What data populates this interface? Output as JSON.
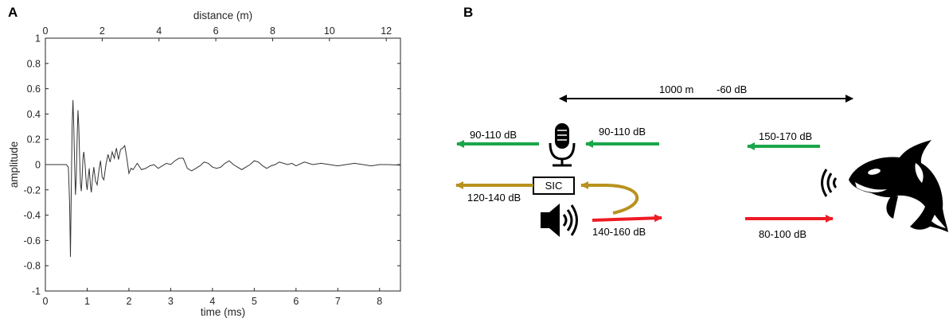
{
  "panels": {
    "a": "A",
    "b": "B"
  },
  "colors": {
    "green": "#1aa64a",
    "gold": "#b8921f",
    "red": "#ee1c24",
    "black": "#000000",
    "trace": "#333333"
  },
  "chart_data": [
    {
      "type": "line",
      "xlabel": "time (ms)",
      "ylabel": "amplitude",
      "secondary_xlabel": "distance (m)",
      "xlim": [
        0,
        8.5
      ],
      "ylim": [
        -1,
        1
      ],
      "secondary_xlim": [
        0,
        12.5
      ],
      "xticks": [
        "0",
        "1",
        "2",
        "3",
        "4",
        "5",
        "6",
        "7",
        "8"
      ],
      "yticks": [
        "-1",
        "-0.8",
        "-0.6",
        "-0.4",
        "-0.2",
        "0",
        "0.2",
        "0.4",
        "0.6",
        "0.8",
        "1"
      ],
      "secondary_xticks": [
        "0",
        "2",
        "4",
        "6",
        "8",
        "10",
        "12"
      ],
      "grid": false,
      "series": [
        {
          "x": [
            0,
            0.5,
            0.55,
            0.58,
            0.6,
            0.62,
            0.64,
            0.66,
            0.68,
            0.7,
            0.72,
            0.74,
            0.76,
            0.78,
            0.8,
            0.82,
            0.84,
            0.86,
            0.88,
            0.9,
            0.92,
            0.95,
            0.98,
            1.0,
            1.02,
            1.05,
            1.08,
            1.1,
            1.13,
            1.16,
            1.2,
            1.24,
            1.28,
            1.32,
            1.36,
            1.4,
            1.45,
            1.5,
            1.55,
            1.6,
            1.65,
            1.7,
            1.75,
            1.8,
            1.85,
            1.9,
            1.95,
            2.0,
            2.05,
            2.1,
            2.2,
            2.3,
            2.4,
            2.5,
            2.6,
            2.7,
            2.8,
            2.9,
            3.0,
            3.1,
            3.2,
            3.3,
            3.4,
            3.5,
            3.6,
            3.7,
            3.8,
            3.9,
            4.0,
            4.1,
            4.2,
            4.3,
            4.4,
            4.5,
            4.6,
            4.7,
            4.8,
            4.9,
            5.0,
            5.1,
            5.2,
            5.3,
            5.4,
            5.5,
            5.6,
            5.7,
            5.8,
            5.9,
            6.0,
            6.2,
            6.4,
            6.6,
            6.8,
            7.0,
            7.2,
            7.4,
            7.6,
            7.8,
            8.0,
            8.2,
            8.5
          ],
          "y": [
            0,
            0,
            -0.02,
            -0.3,
            -0.73,
            -0.2,
            0.3,
            0.51,
            0.3,
            0.0,
            -0.24,
            -0.1,
            0.2,
            0.43,
            0.3,
            0.05,
            -0.15,
            -0.21,
            -0.1,
            0.05,
            0.1,
            0.0,
            -0.15,
            -0.2,
            -0.12,
            -0.03,
            -0.17,
            -0.22,
            -0.1,
            -0.02,
            -0.13,
            -0.16,
            -0.05,
            0.03,
            -0.1,
            -0.12,
            0.0,
            0.08,
            0.02,
            0.1,
            0.05,
            0.13,
            0.04,
            0.12,
            0.13,
            0.15,
            0.05,
            -0.07,
            -0.03,
            -0.04,
            0.01,
            -0.04,
            -0.03,
            -0.01,
            0.0,
            -0.03,
            -0.01,
            0.01,
            0.0,
            0.03,
            0.05,
            0.05,
            -0.03,
            -0.05,
            -0.03,
            -0.01,
            0.02,
            0.01,
            -0.02,
            -0.03,
            -0.02,
            0.01,
            0.03,
            0.0,
            -0.02,
            -0.04,
            -0.02,
            0.0,
            0.03,
            0.02,
            -0.01,
            -0.03,
            -0.01,
            0.0,
            0.02,
            0.01,
            0.0,
            0.01,
            -0.01,
            0.02,
            0.0,
            0.01,
            0.0,
            -0.01,
            0.0,
            0.01,
            0.0,
            -0.01,
            0.0,
            0.0,
            -0.005
          ]
        }
      ]
    }
  ],
  "diagram": {
    "distance_label": "1000 m",
    "attenuation_label": "-60 dB",
    "sic_label": "SIC",
    "left_green_label": "90-110 dB",
    "mid_green_label": "90-110 dB",
    "right_green_label": "150-170 dB",
    "gold_label": "120-140 dB",
    "mid_red_label": "140-160 dB",
    "right_red_label": "80-100 dB"
  },
  "icons": [
    "microphone-icon",
    "speaker-icon",
    "sound-waves-icon",
    "orca-icon"
  ]
}
